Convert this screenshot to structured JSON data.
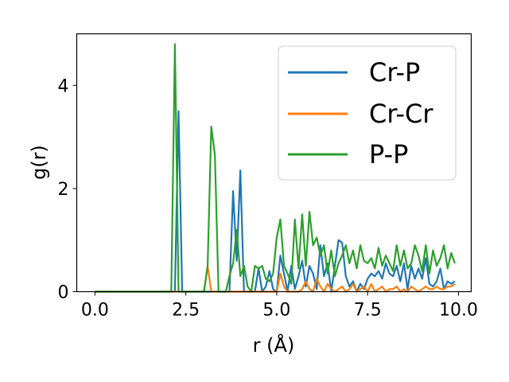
{
  "chart_data": {
    "type": "line",
    "xlabel": "r (Å)",
    "ylabel": "g(r)",
    "xlim": [
      -0.5,
      10.35
    ],
    "ylim": [
      0,
      5.0
    ],
    "xticks": [
      0.0,
      2.5,
      5.0,
      7.5,
      10.0
    ],
    "xtick_labels": [
      "0.0",
      "2.5",
      "5.0",
      "7.5",
      "10.0"
    ],
    "yticks": [
      0,
      2,
      4
    ],
    "ytick_labels": [
      "0",
      "2",
      "4"
    ],
    "grid": false,
    "legend_position": "top-right",
    "x": [
      0,
      0.1,
      0.2,
      0.3,
      0.4,
      0.5,
      0.6,
      0.7,
      0.8,
      0.9,
      1.0,
      1.1,
      1.2,
      1.3,
      1.4,
      1.5,
      1.6,
      1.7,
      1.8,
      1.9,
      2.0,
      2.1,
      2.2,
      2.3,
      2.4,
      2.5,
      2.6,
      2.7,
      2.8,
      2.9,
      3.0,
      3.1,
      3.2,
      3.3,
      3.4,
      3.5,
      3.6,
      3.7,
      3.8,
      3.9,
      4.0,
      4.1,
      4.2,
      4.3,
      4.4,
      4.5,
      4.6,
      4.7,
      4.8,
      4.9,
      5.0,
      5.1,
      5.2,
      5.3,
      5.4,
      5.5,
      5.6,
      5.7,
      5.8,
      5.9,
      6.0,
      6.1,
      6.2,
      6.3,
      6.4,
      6.5,
      6.6,
      6.7,
      6.8,
      6.9,
      7.0,
      7.1,
      7.2,
      7.3,
      7.4,
      7.5,
      7.6,
      7.7,
      7.8,
      7.9,
      8.0,
      8.1,
      8.2,
      8.3,
      8.4,
      8.5,
      8.6,
      8.7,
      8.8,
      8.9,
      9.0,
      9.1,
      9.2,
      9.3,
      9.4,
      9.5,
      9.6,
      9.7,
      9.8,
      9.9
    ],
    "series": [
      {
        "name": "Cr-P",
        "color": "#1f77b4",
        "values": [
          0,
          0,
          0,
          0,
          0,
          0,
          0,
          0,
          0,
          0,
          0,
          0,
          0,
          0,
          0,
          0,
          0,
          0,
          0,
          0,
          0,
          0,
          0,
          3.5,
          0,
          0,
          0,
          0,
          0,
          0,
          0,
          0,
          0,
          0,
          0,
          0,
          0,
          0,
          1.95,
          0.6,
          2.35,
          0,
          0,
          0,
          0,
          0.45,
          0,
          0.1,
          0.4,
          0.05,
          0,
          0.7,
          0.35,
          0,
          0.5,
          0.05,
          0.3,
          0.6,
          0.1,
          0.5,
          0.35,
          0.05,
          0.9,
          0.3,
          0.55,
          0,
          0.5,
          1.0,
          0.95,
          0.3,
          0.1,
          0.2,
          0,
          0.15,
          0.05,
          0.25,
          0.35,
          0.3,
          0.4,
          0.25,
          0.55,
          0.35,
          0.3,
          0.5,
          0.2,
          0.55,
          0.05,
          0.5,
          0.25,
          0.45,
          0.25,
          0.65,
          0.15,
          0.1,
          0.2,
          0.45,
          0.05,
          0.2,
          0.15,
          0.2
        ]
      },
      {
        "name": "Cr-Cr",
        "color": "#ff7f0e",
        "values": [
          0,
          0,
          0,
          0,
          0,
          0,
          0,
          0,
          0,
          0,
          0,
          0,
          0,
          0,
          0,
          0,
          0,
          0,
          0,
          0,
          0,
          0,
          0,
          0,
          0,
          0,
          0,
          0,
          0,
          0,
          0,
          0.5,
          0,
          0,
          0,
          0,
          0,
          0,
          0,
          0,
          0,
          0,
          0,
          0,
          0,
          0,
          0,
          0,
          0,
          0,
          0,
          0.35,
          0.1,
          0,
          0,
          0,
          0,
          0.05,
          0.2,
          0.05,
          0,
          0.25,
          0.1,
          0,
          0.15,
          0.05,
          0,
          0.05,
          0.1,
          0,
          0.05,
          0.15,
          0,
          0.05,
          0.1,
          0,
          0.15,
          0,
          0.05,
          0.1,
          0,
          0.05,
          0.05,
          0.1,
          0,
          0.05,
          0,
          0.1,
          0.05,
          0,
          0.05,
          0.1,
          0.05,
          0.05,
          0.1,
          0.05,
          0.05,
          0.1,
          0.1,
          0.15
        ]
      },
      {
        "name": "P-P",
        "color": "#2ca02c",
        "values": [
          0,
          0,
          0,
          0,
          0,
          0,
          0,
          0,
          0,
          0,
          0,
          0,
          0,
          0,
          0,
          0,
          0,
          0,
          0,
          0,
          0,
          0,
          4.8,
          0,
          0,
          0,
          0,
          0,
          0,
          0,
          0,
          0.5,
          3.2,
          2.65,
          0,
          0,
          0,
          0.3,
          0.55,
          1.2,
          0.3,
          0.5,
          0.1,
          0,
          0.5,
          0.45,
          0.5,
          0.25,
          0.2,
          0.35,
          1.05,
          1.4,
          0.5,
          0.35,
          0.15,
          1.4,
          0.45,
          1.5,
          0.5,
          1.55,
          0.9,
          1.05,
          0.7,
          0.9,
          0.35,
          0.8,
          0.3,
          0.55,
          0.7,
          0.9,
          0.55,
          0.8,
          0.45,
          0.9,
          0.6,
          0.55,
          0.65,
          0.45,
          0.85,
          0.5,
          0.7,
          0.55,
          0.4,
          0.9,
          0.5,
          0.8,
          0.45,
          0.55,
          0.9,
          0.7,
          0.4,
          0.9,
          0.35,
          0.8,
          0.5,
          0.65,
          0.9,
          0.45,
          0.75,
          0.55
        ]
      }
    ]
  }
}
